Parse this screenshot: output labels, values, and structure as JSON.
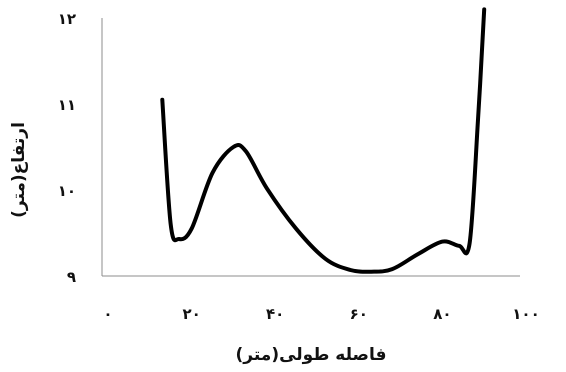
{
  "chart_data": {
    "type": "line",
    "title": "",
    "xlabel": "فاصله طولی(متر)",
    "ylabel": "ارتفاع(متر)",
    "xlim": [
      0,
      100
    ],
    "ylim": [
      9,
      12
    ],
    "x_ticks": [
      {
        "value": 0,
        "label": "٠"
      },
      {
        "value": 20,
        "label": "٢٠"
      },
      {
        "value": 40,
        "label": "۴٠"
      },
      {
        "value": 60,
        "label": "۶٠"
      },
      {
        "value": 80,
        "label": "٨٠"
      },
      {
        "value": 100,
        "label": "١٠٠"
      }
    ],
    "y_ticks": [
      {
        "value": 9,
        "label": "٩"
      },
      {
        "value": 10,
        "label": "١٠"
      },
      {
        "value": 11,
        "label": "١١"
      },
      {
        "value": 12,
        "label": "١٢"
      }
    ],
    "grid": false,
    "legend": "none",
    "series": [
      {
        "color": "#000000",
        "x": [
          13,
          15,
          17,
          20,
          25,
          30,
          33,
          38,
          45,
          52,
          58,
          63,
          68,
          74,
          80,
          84,
          86.5,
          88.5,
          90
        ],
        "y": [
          11.05,
          9.6,
          9.43,
          9.55,
          10.2,
          10.5,
          10.45,
          10.02,
          9.55,
          9.2,
          9.07,
          9.05,
          9.08,
          9.25,
          9.4,
          9.35,
          9.38,
          10.8,
          12.1
        ]
      }
    ]
  }
}
